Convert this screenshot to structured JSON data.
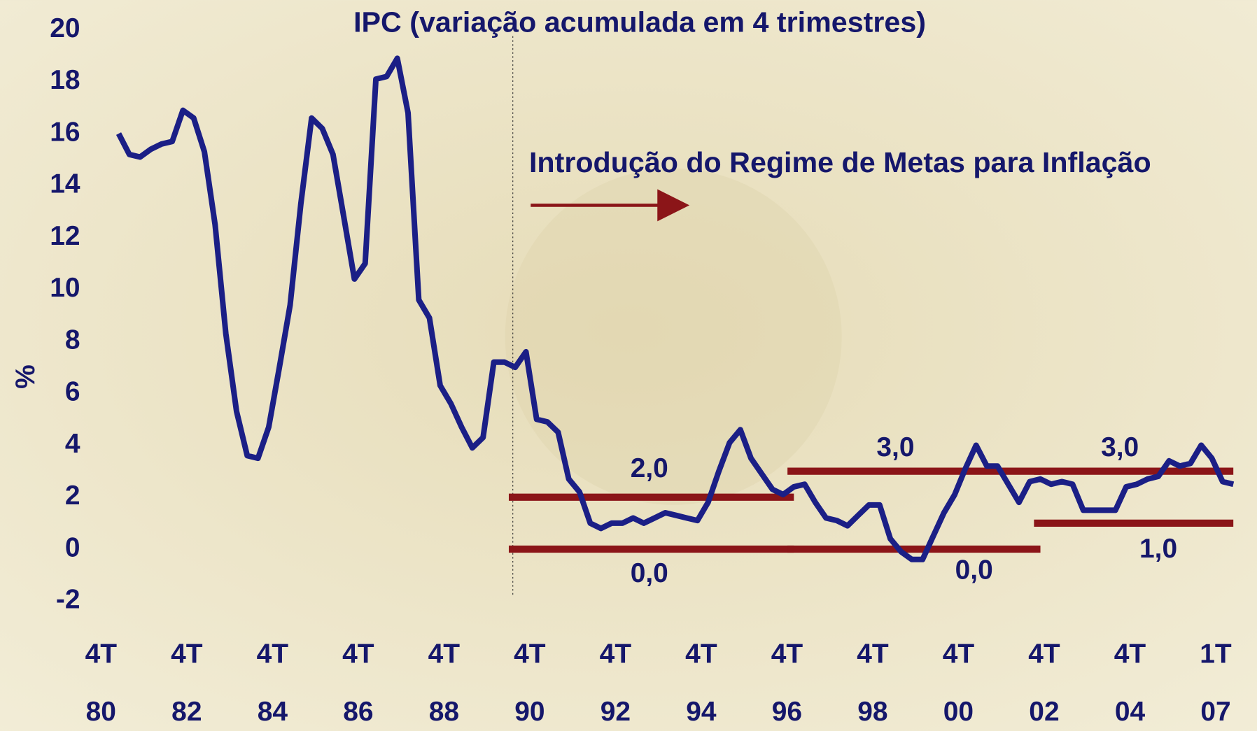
{
  "chart_data": {
    "type": "line",
    "title": "IPC (variação acumulada em 4 trimestres)",
    "annotation": "Introdução do Regime de Metas para Inflação",
    "y_label": "%",
    "color": "#1b1f86",
    "target_color": "#8b1518",
    "ylim": [
      -2,
      20
    ],
    "yticks": [
      20,
      18,
      16,
      14,
      12,
      10,
      8,
      6,
      4,
      2,
      0,
      -2
    ],
    "categories": [
      [
        "4T",
        "80"
      ],
      null,
      null,
      null,
      null,
      null,
      null,
      null,
      [
        "4T",
        "82"
      ],
      null,
      null,
      null,
      null,
      null,
      null,
      null,
      [
        "4T",
        "84"
      ],
      null,
      null,
      null,
      null,
      null,
      null,
      null,
      [
        "4T",
        "86"
      ],
      null,
      null,
      null,
      null,
      null,
      null,
      null,
      [
        "4T",
        "88"
      ],
      null,
      null,
      null,
      null,
      null,
      null,
      null,
      [
        "4T",
        "90"
      ],
      null,
      null,
      null,
      null,
      null,
      null,
      null,
      [
        "4T",
        "92"
      ],
      null,
      null,
      null,
      null,
      null,
      null,
      null,
      [
        "4T",
        "94"
      ],
      null,
      null,
      null,
      null,
      null,
      null,
      null,
      [
        "4T",
        "96"
      ],
      null,
      null,
      null,
      null,
      null,
      null,
      null,
      [
        "4T",
        "98"
      ],
      null,
      null,
      null,
      null,
      null,
      null,
      null,
      [
        "4T",
        "00"
      ],
      null,
      null,
      null,
      null,
      null,
      null,
      null,
      [
        "4T",
        "02"
      ],
      null,
      null,
      null,
      null,
      null,
      null,
      null,
      [
        "4T",
        "04"
      ],
      null,
      null,
      null,
      null,
      null,
      null,
      null,
      [
        "1T",
        "07"
      ]
    ],
    "values": [
      16.0,
      15.2,
      15.1,
      15.4,
      15.6,
      15.7,
      16.9,
      16.6,
      15.3,
      12.5,
      8.3,
      5.3,
      3.6,
      3.5,
      4.7,
      7.0,
      9.4,
      13.3,
      16.6,
      16.2,
      15.2,
      12.8,
      10.4,
      11.0,
      18.1,
      18.2,
      18.9,
      16.8,
      9.6,
      8.9,
      6.3,
      5.6,
      4.7,
      3.9,
      4.3,
      7.2,
      7.2,
      7.0,
      7.6,
      5.0,
      4.9,
      4.5,
      2.7,
      2.2,
      1.0,
      0.8,
      1.0,
      1.0,
      1.2,
      1.0,
      1.2,
      1.4,
      1.3,
      1.2,
      1.1,
      1.8,
      3.0,
      4.1,
      4.6,
      3.5,
      2.9,
      2.3,
      2.1,
      2.4,
      2.5,
      1.8,
      1.2,
      1.1,
      0.9,
      1.3,
      1.7,
      1.7,
      0.4,
      -0.1,
      -0.4,
      -0.4,
      0.5,
      1.4,
      2.1,
      3.1,
      4.0,
      3.2,
      3.2,
      2.5,
      1.8,
      2.6,
      2.7,
      2.5,
      2.6,
      2.5,
      1.5,
      1.5,
      1.5,
      1.5,
      2.4,
      2.5,
      2.7,
      2.8,
      3.4,
      3.2,
      3.3,
      4.0,
      3.5,
      2.6,
      2.5
    ],
    "target_lines": [
      {
        "value": 2,
        "label": "2,0",
        "start": 37,
        "end": 63
      },
      {
        "value": 0,
        "label": "0,0",
        "start": 37,
        "end": 63
      },
      {
        "value": 3,
        "label": "3,0",
        "start": 63,
        "end": 86
      },
      {
        "value": 0,
        "label": "0,0",
        "start": 63,
        "end": 86
      },
      {
        "value": 3,
        "label": "3,0",
        "start": 86,
        "end": 104
      },
      {
        "value": 1,
        "label": "1,0",
        "start": 86,
        "end": 104
      }
    ]
  }
}
